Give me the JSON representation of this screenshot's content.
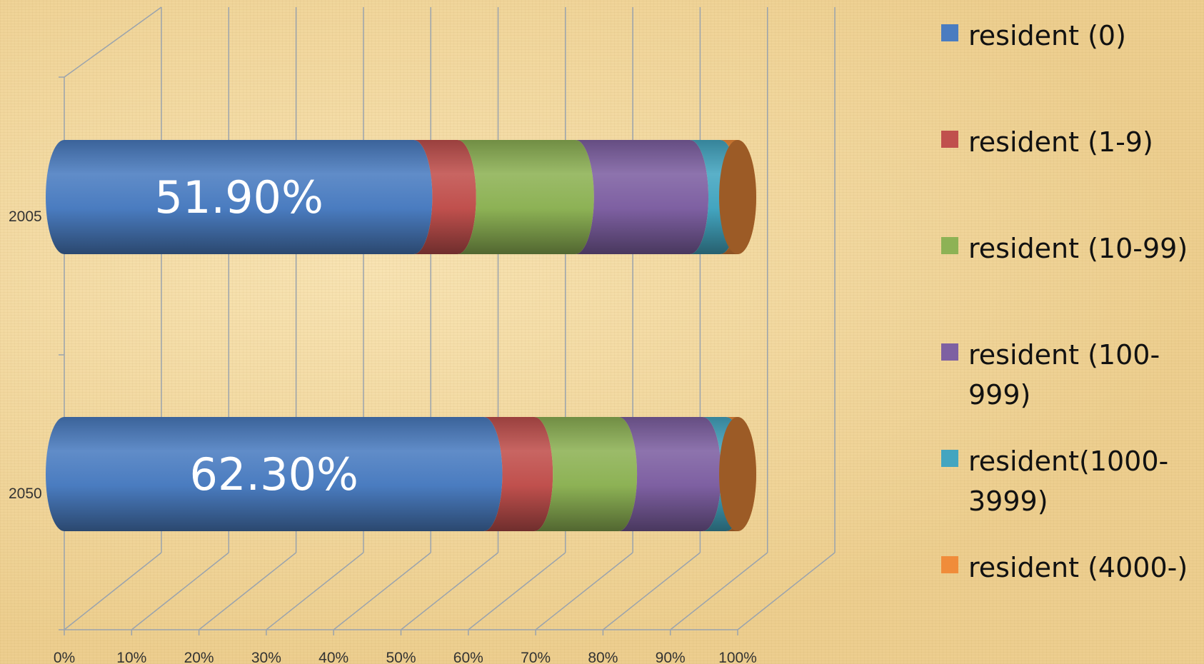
{
  "chart_data": {
    "type": "bar",
    "orientation": "horizontal",
    "stacked": "percent",
    "style": "3d-cylinder",
    "categories": [
      "2005",
      "2050"
    ],
    "series": [
      {
        "name": "resident (0)",
        "color": "#4a7cc0",
        "values": [
          51.9,
          62.3
        ]
      },
      {
        "name": "resident (1-9)",
        "color": "#c0504d",
        "values": [
          6.5,
          7.5
        ]
      },
      {
        "name": "resident (10-99)",
        "color": "#8db255",
        "values": [
          17.5,
          12.5
        ]
      },
      {
        "name": "resident (100-999)",
        "color": "#7e60a2",
        "values": [
          17.0,
          12.5
        ]
      },
      {
        "name": "resident(1000-3999)",
        "color": "#43a5c0",
        "values": [
          4.5,
          3.5
        ]
      },
      {
        "name": "resident (4000-)",
        "color": "#f08c3a",
        "values": [
          2.6,
          1.7
        ]
      }
    ],
    "data_labels": [
      "51.90%",
      "62.30%"
    ],
    "x_ticks": [
      "0%",
      "10%",
      "20%",
      "30%",
      "40%",
      "50%",
      "60%",
      "70%",
      "80%",
      "90%",
      "100%"
    ],
    "xlim": [
      0,
      100
    ],
    "grid": true,
    "legend": "right"
  }
}
